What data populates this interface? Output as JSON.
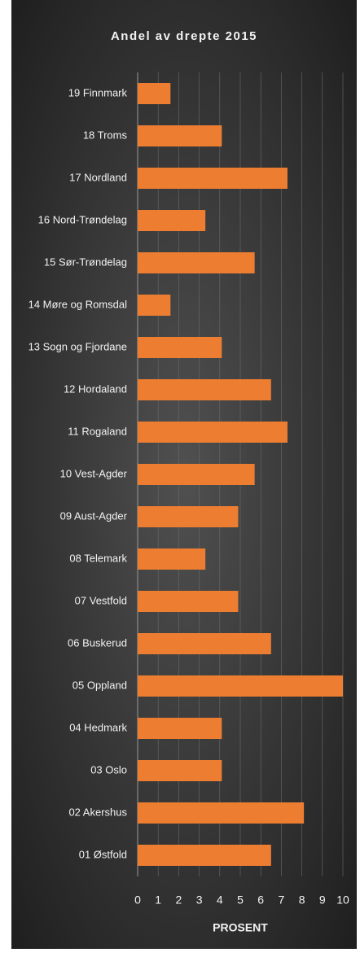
{
  "chart_data": {
    "type": "bar",
    "orientation": "horizontal",
    "title": "Andel av drepte 2015",
    "x_label": "PROSENT",
    "categories": [
      "19 Finnmark",
      "18 Troms",
      "17 Nordland",
      "16 Nord-Trøndelag",
      "15 Sør-Trøndelag",
      "14 Møre og Romsdal",
      "13 Sogn og Fjordane",
      "12 Hordaland",
      "11 Rogaland",
      "10 Vest-Agder",
      "09 Aust-Agder",
      "08 Telemark",
      "07 Vestfold",
      "06 Buskerud",
      "05 Oppland",
      "04 Hedmark",
      "03 Oslo",
      "02 Akershus",
      "01 Østfold"
    ],
    "values": [
      1.6,
      4.1,
      7.3,
      3.3,
      5.7,
      1.6,
      4.1,
      6.5,
      7.3,
      5.7,
      4.9,
      3.3,
      4.9,
      6.5,
      10,
      4.1,
      4.1,
      8.1,
      6.5
    ],
    "color": "#ed7d31",
    "xlim": [
      0,
      10
    ],
    "xticks": [
      0,
      1,
      2,
      3,
      4,
      5,
      6,
      7,
      8,
      9,
      10
    ],
    "grid": true
  }
}
